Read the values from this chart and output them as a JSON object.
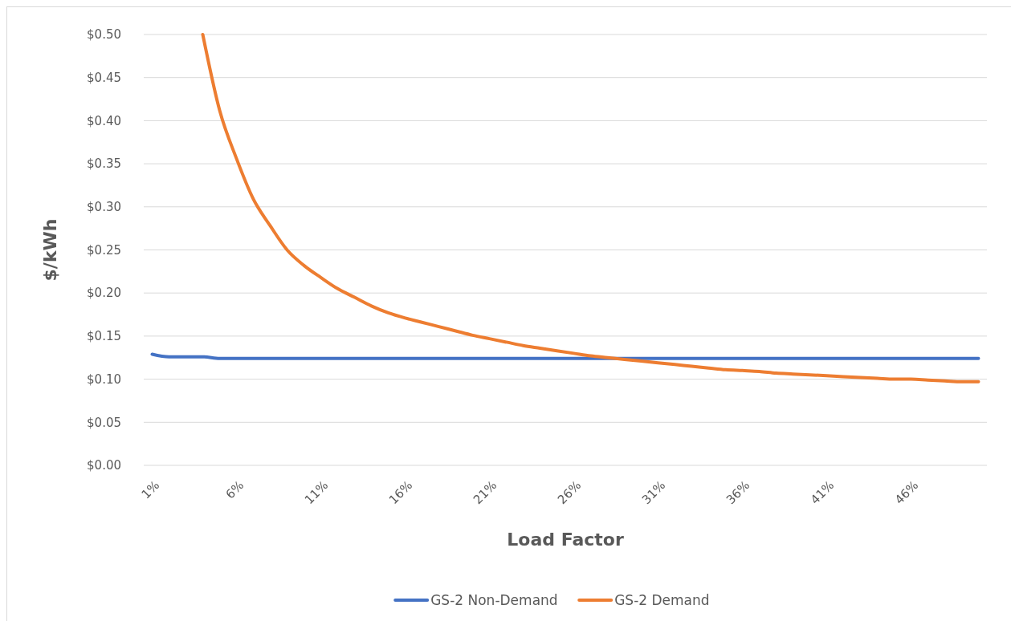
{
  "chart_data": {
    "type": "line",
    "xlabel": "Load Factor",
    "ylabel": "$/kWh",
    "categories": [
      "1%",
      null,
      null,
      null,
      null,
      "6%",
      null,
      null,
      null,
      null,
      "11%",
      null,
      null,
      null,
      null,
      "16%",
      null,
      null,
      null,
      null,
      "21%",
      null,
      null,
      null,
      null,
      "26%",
      null,
      null,
      null,
      null,
      "31%",
      null,
      null,
      null,
      null,
      "36%",
      null,
      null,
      null,
      null,
      "41%",
      null,
      null,
      null,
      null,
      "46%",
      null,
      null,
      null,
      null
    ],
    "series": [
      {
        "name": "GS-2 Non-Demand",
        "color": "#4472c4",
        "values": [
          0.129,
          0.126,
          0.126,
          0.126,
          0.124,
          0.124,
          0.124,
          0.124,
          0.124,
          0.124,
          0.124,
          0.124,
          0.124,
          0.124,
          0.124,
          0.124,
          0.124,
          0.124,
          0.124,
          0.124,
          0.124,
          0.124,
          0.124,
          0.124,
          0.124,
          0.124,
          0.124,
          0.124,
          0.124,
          0.124,
          0.124,
          0.124,
          0.124,
          0.124,
          0.124,
          0.124,
          0.124,
          0.124,
          0.124,
          0.124,
          0.124,
          0.124,
          0.124,
          0.124,
          0.124,
          0.124,
          0.124,
          0.124,
          0.124,
          0.124
        ]
      },
      {
        "name": "GS-2 Demand",
        "color": "#ed7d31",
        "values": [
          null,
          null,
          null,
          0.5,
          0.412,
          0.356,
          0.309,
          0.278,
          0.25,
          0.232,
          0.218,
          0.205,
          0.195,
          0.185,
          0.177,
          0.171,
          0.166,
          0.161,
          0.156,
          0.151,
          0.147,
          0.143,
          0.139,
          0.136,
          0.133,
          0.13,
          0.127,
          0.125,
          0.123,
          0.121,
          0.119,
          0.117,
          0.115,
          0.113,
          0.111,
          0.11,
          0.109,
          0.107,
          0.106,
          0.105,
          0.104,
          0.103,
          0.102,
          0.101,
          0.1,
          0.1,
          0.099,
          0.098,
          0.097,
          0.097
        ]
      }
    ],
    "ylim": [
      0,
      0.5
    ],
    "yticks": [
      {
        "value": 0,
        "label": "$0.00"
      },
      {
        "value": 0.05,
        "label": "$0.05"
      },
      {
        "value": 0.1,
        "label": "$0.10"
      },
      {
        "value": 0.15,
        "label": "$0.15"
      },
      {
        "value": 0.2,
        "label": "$0.20"
      },
      {
        "value": 0.25,
        "label": "$0.25"
      },
      {
        "value": 0.3,
        "label": "$0.30"
      },
      {
        "value": 0.35,
        "label": "$0.35"
      },
      {
        "value": 0.4,
        "label": "$0.40"
      },
      {
        "value": 0.45,
        "label": "$0.45"
      },
      {
        "value": 0.5,
        "label": "$0.50"
      }
    ],
    "grid": "y",
    "legend": "bottom",
    "marker": "none",
    "line_style": "solid"
  }
}
